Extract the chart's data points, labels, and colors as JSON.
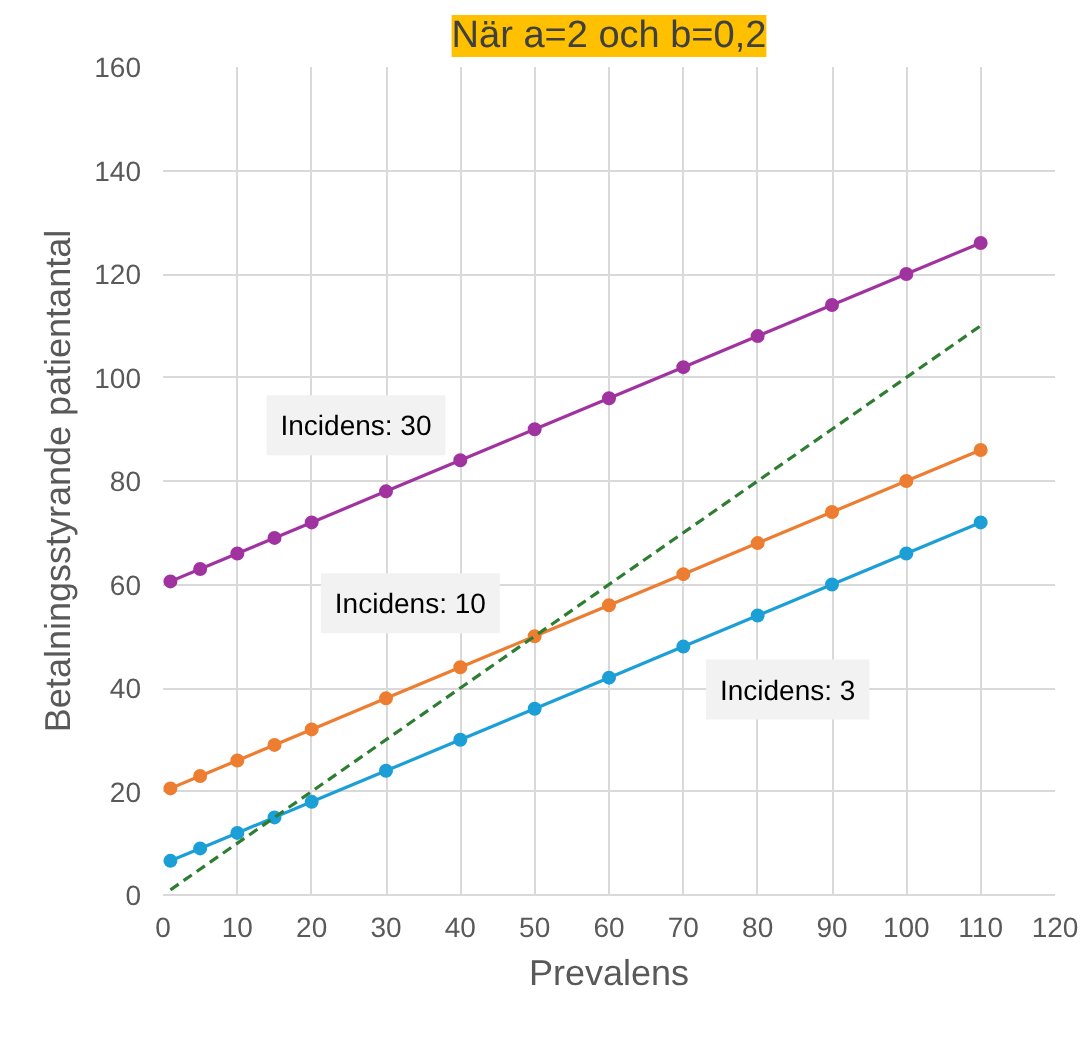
{
  "chart_data": {
    "type": "line",
    "title": "När a=2 och b=0,2",
    "xlabel": "Prevalens",
    "ylabel": "Betalningsstyrande patientantal",
    "xlim": [
      0,
      120
    ],
    "xticks": [
      0,
      10,
      20,
      30,
      40,
      50,
      60,
      70,
      80,
      90,
      100,
      110,
      120
    ],
    "ylim": [
      0,
      160
    ],
    "yticks": [
      0,
      20,
      40,
      60,
      80,
      100,
      120,
      140,
      160
    ],
    "grid": true,
    "marker": "circle",
    "x": [
      1,
      5,
      10,
      15,
      20,
      30,
      40,
      50,
      60,
      70,
      80,
      90,
      100,
      110
    ],
    "series": [
      {
        "name": "Incidens: 3",
        "color": "#1b9fd6",
        "values": [
          6.6,
          9,
          12,
          15,
          18,
          24,
          30,
          36,
          42,
          48,
          54,
          60,
          66,
          72
        ]
      },
      {
        "name": "Incidens: 10",
        "color": "#ed7d31",
        "values": [
          20.6,
          23,
          26,
          29,
          32,
          38,
          44,
          50,
          56,
          62,
          68,
          74,
          80,
          86
        ]
      },
      {
        "name": "Incidens: 30",
        "color": "#a033a0",
        "values": [
          60.6,
          63,
          66,
          69,
          72,
          78,
          84,
          90,
          96,
          102,
          108,
          114,
          120,
          126
        ]
      },
      {
        "color": "#2e7d32",
        "x": [
          1,
          110
        ],
        "values": [
          1,
          110
        ],
        "marker": "none",
        "line_style": "dashed"
      }
    ]
  }
}
